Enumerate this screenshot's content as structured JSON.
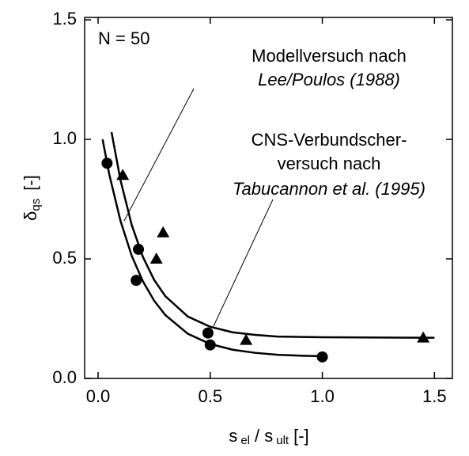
{
  "chart_data": {
    "type": "scatter",
    "ylabel_parts": [
      "δ",
      "qs",
      "[-]"
    ],
    "xlabel_parts": [
      "s",
      "el",
      "/ s",
      "ult",
      "[-]"
    ],
    "annotations": [
      {
        "text": "N = 50",
        "italic": false
      },
      {
        "text": "Modellversuch nach",
        "italic": false
      },
      {
        "text": "Lee/Poulos (1988)",
        "italic": true
      },
      {
        "text": "CNS-Verbundscher-",
        "italic": false
      },
      {
        "text": "versuch nach",
        "italic": false
      },
      {
        "text": "Tabucannon et al. (1995)",
        "italic": true
      }
    ],
    "xlim": [
      -0.06,
      1.58
    ],
    "ylim": [
      0,
      1.51
    ],
    "xticks": [
      {
        "value": 0,
        "label": "0.0"
      },
      0.5,
      {
        "value": 1,
        "label": "1.0"
      },
      1.5
    ],
    "yticks": [
      {
        "value": 0,
        "label": "0.0"
      },
      0.5,
      {
        "value": 1,
        "label": "1.0"
      },
      1.5
    ],
    "series": [
      {
        "marker": "circle",
        "color": "#000000",
        "x": [
          0.04,
          0.18,
          0.17,
          0.49,
          0.5,
          1.0
        ],
        "values": [
          0.9,
          0.54,
          0.41,
          0.19,
          0.14,
          0.09
        ]
      },
      {
        "marker": "triangle",
        "color": "#000000",
        "x": [
          0.11,
          0.26,
          0.29,
          0.66,
          1.45
        ],
        "values": [
          0.85,
          0.5,
          0.61,
          0.16,
          0.17
        ]
      },
      {
        "marker": "none",
        "color": "#000000",
        "x": [
          0.02,
          0.05,
          0.1,
          0.15,
          0.2,
          0.25,
          0.3,
          0.4,
          0.5,
          0.6,
          0.7,
          0.8,
          0.9,
          1.0
        ],
        "values": [
          1.0,
          0.853,
          0.659,
          0.513,
          0.406,
          0.325,
          0.265,
          0.187,
          0.144,
          0.12,
          0.107,
          0.099,
          0.095,
          0.093
        ]
      },
      {
        "marker": "none",
        "color": "#000000",
        "x": [
          0.06,
          0.1,
          0.15,
          0.2,
          0.25,
          0.3,
          0.4,
          0.5,
          0.6,
          0.7,
          0.8,
          1.0,
          1.5
        ],
        "values": [
          1.03,
          0.829,
          0.642,
          0.508,
          0.412,
          0.344,
          0.259,
          0.216,
          0.193,
          0.182,
          0.175,
          0.172,
          0.17
        ]
      }
    ]
  }
}
